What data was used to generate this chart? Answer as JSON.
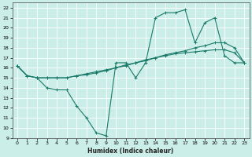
{
  "xlabel": "Humidex (Indice chaleur)",
  "bg_color": "#cceee8",
  "line_color": "#1a7a6a",
  "xlim": [
    -0.5,
    23.5
  ],
  "ylim": [
    9,
    22.5
  ],
  "xticks": [
    0,
    1,
    2,
    3,
    4,
    5,
    6,
    7,
    8,
    9,
    10,
    11,
    12,
    13,
    14,
    15,
    16,
    17,
    18,
    19,
    20,
    21,
    22,
    23
  ],
  "yticks": [
    9,
    10,
    11,
    12,
    13,
    14,
    15,
    16,
    17,
    18,
    19,
    20,
    21,
    22
  ],
  "line1_x": [
    0,
    1,
    2,
    3,
    4,
    5,
    6,
    7,
    8,
    9,
    10,
    11,
    12,
    13,
    14,
    15,
    16,
    17,
    18,
    19,
    20,
    21,
    22,
    23
  ],
  "line1_y": [
    16.2,
    15.2,
    15.0,
    15.0,
    15.0,
    15.0,
    15.2,
    15.4,
    15.6,
    15.8,
    16.0,
    16.3,
    16.5,
    16.8,
    17.0,
    17.3,
    17.5,
    17.7,
    18.0,
    18.2,
    18.5,
    18.5,
    18.0,
    16.5
  ],
  "line2_x": [
    0,
    1,
    2,
    3,
    4,
    5,
    6,
    7,
    8,
    9,
    10,
    11,
    12,
    13,
    14,
    15,
    16,
    17,
    18,
    19,
    20,
    21,
    22,
    23
  ],
  "line2_y": [
    16.2,
    15.2,
    15.0,
    15.0,
    15.0,
    15.0,
    15.2,
    15.3,
    15.5,
    15.7,
    16.0,
    16.2,
    16.5,
    16.7,
    17.0,
    17.2,
    17.4,
    17.5,
    17.6,
    17.7,
    17.8,
    17.8,
    17.5,
    16.5
  ],
  "line3_x": [
    0,
    1,
    2,
    3,
    4,
    5,
    6,
    7,
    8,
    9,
    10,
    11,
    12,
    13,
    14,
    15,
    16,
    17,
    18,
    19,
    20,
    21,
    22,
    23
  ],
  "line3_y": [
    16.2,
    15.2,
    15.0,
    14.0,
    13.8,
    13.8,
    12.2,
    11.0,
    9.5,
    9.2,
    16.5,
    16.5,
    15.0,
    16.5,
    21.0,
    21.5,
    21.5,
    21.8,
    18.5,
    20.5,
    21.0,
    17.2,
    16.5,
    16.5
  ]
}
